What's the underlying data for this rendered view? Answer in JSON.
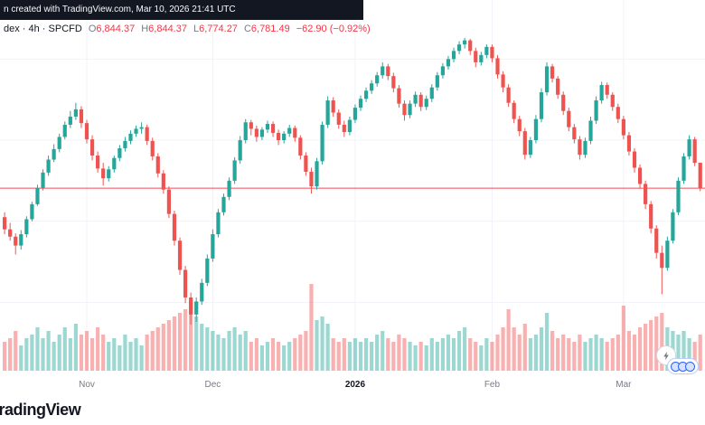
{
  "header": {
    "attribution": "n created with TradingView.com, Mar 10, 2026 21:41 UTC"
  },
  "symbol_bar": {
    "symbol": "dex · 4h · SPCFD",
    "ohlc": [
      {
        "label": "O",
        "value": "6,844.37"
      },
      {
        "label": "H",
        "value": "6,844.37"
      },
      {
        "label": "L",
        "value": "6,774.27"
      },
      {
        "label": "C",
        "value": "6,781.49"
      }
    ],
    "change": "−62.90 (−0.92%)"
  },
  "watermark": "TradingView",
  "colors": {
    "up": "#26a69a",
    "down": "#ef5350",
    "volume_up": "rgba(38,166,154,0.45)",
    "volume_down": "rgba(239,83,80,0.45)",
    "price_line": "#f23645",
    "grid": "#f0f3fa",
    "axis_text": "#787b86",
    "axis_text_bold": "#131722",
    "accent_blue": "#2962ff"
  },
  "chart_data": {
    "type": "candlestick",
    "symbol": "SPCFD",
    "interval": "4h",
    "last_close": 6781.49,
    "last_change": -62.9,
    "last_change_pct": -0.92,
    "price_range": [
      6420,
      7170
    ],
    "h_gridlines": [
      6500,
      6700,
      6900,
      7100
    ],
    "x_ticks": [
      {
        "label": "Nov",
        "i": 15,
        "bold": false
      },
      {
        "label": "Dec",
        "i": 38,
        "bold": false
      },
      {
        "label": "2026",
        "i": 64,
        "bold": true
      },
      {
        "label": "Feb",
        "i": 89,
        "bold": false
      },
      {
        "label": "Mar",
        "i": 113,
        "bold": false
      }
    ],
    "candles": [
      [
        6710,
        6722,
        6668,
        6680,
        0.8
      ],
      [
        6680,
        6696,
        6652,
        6662,
        0.9
      ],
      [
        6662,
        6670,
        6618,
        6640,
        1.1
      ],
      [
        6640,
        6678,
        6630,
        6668,
        0.7
      ],
      [
        6668,
        6712,
        6660,
        6705,
        0.9
      ],
      [
        6705,
        6748,
        6700,
        6742,
        1.0
      ],
      [
        6742,
        6790,
        6738,
        6782,
        1.2
      ],
      [
        6782,
        6828,
        6776,
        6820,
        0.9
      ],
      [
        6820,
        6862,
        6812,
        6852,
        1.1
      ],
      [
        6852,
        6890,
        6846,
        6878,
        0.8
      ],
      [
        6878,
        6916,
        6870,
        6908,
        1.0
      ],
      [
        6908,
        6946,
        6902,
        6938,
        1.2
      ],
      [
        6938,
        6972,
        6930,
        6958,
        0.9
      ],
      [
        6958,
        6992,
        6950,
        6976,
        1.3
      ],
      [
        6976,
        6984,
        6930,
        6942,
        1.0
      ],
      [
        6942,
        6950,
        6892,
        6902,
        1.1
      ],
      [
        6902,
        6912,
        6850,
        6862,
        0.9
      ],
      [
        6862,
        6872,
        6820,
        6830,
        1.2
      ],
      [
        6830,
        6844,
        6788,
        6806,
        1.0
      ],
      [
        6806,
        6836,
        6798,
        6828,
        0.8
      ],
      [
        6828,
        6862,
        6820,
        6856,
        0.9
      ],
      [
        6856,
        6888,
        6848,
        6880,
        0.7
      ],
      [
        6880,
        6908,
        6872,
        6898,
        1.0
      ],
      [
        6898,
        6924,
        6890,
        6916,
        0.8
      ],
      [
        6916,
        6936,
        6908,
        6928,
        0.9
      ],
      [
        6928,
        6944,
        6916,
        6932,
        0.7
      ],
      [
        6932,
        6938,
        6888,
        6898,
        1.0
      ],
      [
        6898,
        6906,
        6850,
        6860,
        1.1
      ],
      [
        6860,
        6868,
        6808,
        6818,
        1.2
      ],
      [
        6818,
        6826,
        6768,
        6778,
        1.3
      ],
      [
        6778,
        6786,
        6708,
        6718,
        1.4
      ],
      [
        6718,
        6726,
        6640,
        6652,
        1.5
      ],
      [
        6652,
        6660,
        6568,
        6580,
        1.6
      ],
      [
        6580,
        6590,
        6498,
        6512,
        1.7
      ],
      [
        6512,
        6524,
        6445,
        6470,
        1.9
      ],
      [
        6470,
        6512,
        6452,
        6502,
        1.5
      ],
      [
        6502,
        6558,
        6494,
        6548,
        1.3
      ],
      [
        6548,
        6618,
        6540,
        6608,
        1.2
      ],
      [
        6608,
        6680,
        6600,
        6668,
        1.1
      ],
      [
        6668,
        6730,
        6660,
        6722,
        1.0
      ],
      [
        6722,
        6768,
        6714,
        6760,
        0.9
      ],
      [
        6760,
        6808,
        6752,
        6800,
        1.1
      ],
      [
        6800,
        6858,
        6792,
        6850,
        1.2
      ],
      [
        6850,
        6910,
        6842,
        6900,
        1.0
      ],
      [
        6900,
        6952,
        6892,
        6944,
        1.1
      ],
      [
        6944,
        6950,
        6912,
        6928,
        0.8
      ],
      [
        6928,
        6936,
        6896,
        6908,
        0.9
      ],
      [
        6908,
        6932,
        6900,
        6926,
        0.7
      ],
      [
        6926,
        6948,
        6918,
        6940,
        0.8
      ],
      [
        6940,
        6946,
        6908,
        6918,
        0.9
      ],
      [
        6918,
        6926,
        6888,
        6900,
        0.8
      ],
      [
        6900,
        6922,
        6892,
        6916,
        0.7
      ],
      [
        6916,
        6938,
        6908,
        6930,
        0.8
      ],
      [
        6930,
        6936,
        6896,
        6906,
        0.9
      ],
      [
        6906,
        6912,
        6852,
        6862,
        1.0
      ],
      [
        6862,
        6870,
        6812,
        6822,
        1.1
      ],
      [
        6822,
        6832,
        6768,
        6786,
        2.4
      ],
      [
        6786,
        6856,
        6778,
        6848,
        1.4
      ],
      [
        6848,
        6946,
        6840,
        6938,
        1.5
      ],
      [
        6938,
        7008,
        6930,
        6998,
        1.3
      ],
      [
        6998,
        7006,
        6958,
        6968,
        0.9
      ],
      [
        6968,
        6976,
        6928,
        6938,
        0.8
      ],
      [
        6938,
        6948,
        6908,
        6920,
        0.9
      ],
      [
        6920,
        6958,
        6912,
        6950,
        0.8
      ],
      [
        6950,
        6988,
        6942,
        6980,
        0.9
      ],
      [
        6980,
        7010,
        6972,
        7002,
        0.8
      ],
      [
        7002,
        7030,
        6994,
        7022,
        0.9
      ],
      [
        7022,
        7048,
        7014,
        7040,
        0.8
      ],
      [
        7040,
        7068,
        7032,
        7060,
        1.0
      ],
      [
        7060,
        7092,
        7052,
        7082,
        1.1
      ],
      [
        7082,
        7088,
        7048,
        7058,
        0.9
      ],
      [
        7058,
        7066,
        7018,
        7028,
        0.8
      ],
      [
        7028,
        7036,
        6980,
        6990,
        1.0
      ],
      [
        6990,
        6998,
        6948,
        6962,
        0.9
      ],
      [
        6962,
        6998,
        6954,
        6990,
        0.8
      ],
      [
        6990,
        7020,
        6982,
        7012,
        0.7
      ],
      [
        7012,
        7018,
        6972,
        6982,
        0.8
      ],
      [
        6982,
        7010,
        6974,
        7002,
        0.7
      ],
      [
        7002,
        7038,
        6994,
        7030,
        0.9
      ],
      [
        7030,
        7068,
        7022,
        7060,
        0.8
      ],
      [
        7060,
        7090,
        7052,
        7082,
        0.9
      ],
      [
        7082,
        7108,
        7074,
        7100,
        1.0
      ],
      [
        7100,
        7128,
        7092,
        7120,
        0.9
      ],
      [
        7120,
        7144,
        7112,
        7136,
        1.1
      ],
      [
        7136,
        7152,
        7126,
        7146,
        1.2
      ],
      [
        7146,
        7150,
        7110,
        7120,
        0.9
      ],
      [
        7120,
        7128,
        7080,
        7092,
        0.8
      ],
      [
        7092,
        7118,
        7084,
        7110,
        0.7
      ],
      [
        7110,
        7136,
        7102,
        7130,
        0.9
      ],
      [
        7130,
        7136,
        7092,
        7102,
        0.8
      ],
      [
        7102,
        7110,
        7052,
        7062,
        1.0
      ],
      [
        7062,
        7070,
        7018,
        7030,
        1.2
      ],
      [
        7030,
        7038,
        6982,
        6992,
        1.7
      ],
      [
        6992,
        6998,
        6942,
        6952,
        1.2
      ],
      [
        6952,
        6960,
        6910,
        6922,
        1.0
      ],
      [
        6922,
        6930,
        6852,
        6864,
        1.3
      ],
      [
        6864,
        6908,
        6856,
        6900,
        0.9
      ],
      [
        6900,
        6962,
        6892,
        6952,
        1.0
      ],
      [
        6952,
        7028,
        6944,
        7018,
        1.2
      ],
      [
        7018,
        7092,
        7010,
        7082,
        1.6
      ],
      [
        7082,
        7088,
        7042,
        7052,
        1.1
      ],
      [
        7052,
        7058,
        7002,
        7012,
        0.9
      ],
      [
        7012,
        7020,
        6962,
        6972,
        1.0
      ],
      [
        6972,
        6980,
        6922,
        6932,
        0.9
      ],
      [
        6932,
        6940,
        6892,
        6902,
        0.8
      ],
      [
        6902,
        6910,
        6852,
        6864,
        1.0
      ],
      [
        6864,
        6906,
        6856,
        6898,
        0.8
      ],
      [
        6898,
        6958,
        6890,
        6948,
        0.9
      ],
      [
        6948,
        7008,
        6940,
        6998,
        1.0
      ],
      [
        6998,
        7044,
        6990,
        7036,
        0.9
      ],
      [
        7036,
        7042,
        7002,
        7012,
        0.8
      ],
      [
        7012,
        7018,
        6972,
        6982,
        0.9
      ],
      [
        6982,
        6990,
        6942,
        6952,
        1.0
      ],
      [
        6952,
        6960,
        6902,
        6912,
        1.8
      ],
      [
        6912,
        6920,
        6862,
        6872,
        1.1
      ],
      [
        6872,
        6880,
        6820,
        6832,
        1.0
      ],
      [
        6832,
        6840,
        6780,
        6792,
        1.2
      ],
      [
        6792,
        6800,
        6730,
        6742,
        1.3
      ],
      [
        6742,
        6750,
        6670,
        6682,
        1.4
      ],
      [
        6682,
        6690,
        6608,
        6622,
        1.5
      ],
      [
        6622,
        6640,
        6520,
        6585,
        1.6
      ],
      [
        6585,
        6662,
        6578,
        6652,
        1.2
      ],
      [
        6652,
        6730,
        6645,
        6722,
        1.1
      ],
      [
        6722,
        6808,
        6715,
        6800,
        1.0
      ],
      [
        6800,
        6868,
        6792,
        6860,
        1.1
      ],
      [
        6860,
        6912,
        6852,
        6902,
        0.9
      ],
      [
        6902,
        6908,
        6836,
        6844,
        0.8
      ],
      [
        6844.37,
        6844.37,
        6774.27,
        6781.49,
        1.0
      ]
    ]
  }
}
